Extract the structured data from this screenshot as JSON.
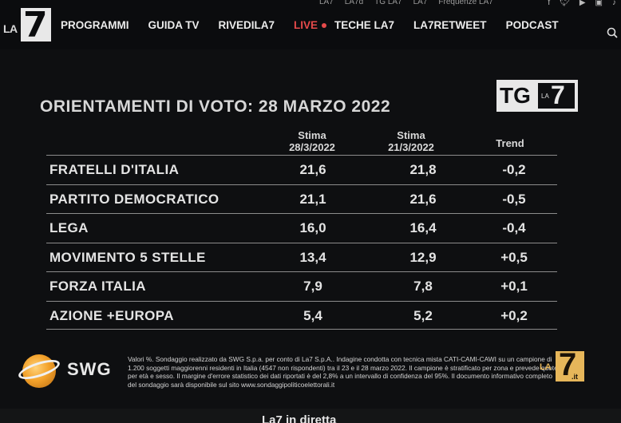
{
  "topbar": {
    "links": [
      "LA7",
      "LA7d",
      "TG LA7",
      "LA7"
    ],
    "frequenze": "Frequenze LA7",
    "social_icons": [
      "facebook-icon",
      "twitter-icon",
      "youtube-icon",
      "instagram-icon",
      "bell-icon"
    ]
  },
  "header": {
    "logo_la": "LA",
    "logo_seven": "7",
    "nav": [
      "PROGRAMMI",
      "GUIDA TV",
      "RIVEDILA7"
    ],
    "live": "LIVE",
    "nav2": [
      "TECHE LA7",
      "LA7RETWEET",
      "PODCAST"
    ],
    "accent_color": "#e64a4a"
  },
  "graphic": {
    "title": "ORIENTAMENTI DI VOTO: 28 MARZO 2022",
    "tg_logo": {
      "tg": "TG",
      "la": "LA",
      "seven": "7"
    },
    "columns": {
      "c1_top": "Stima",
      "c1_date": "28/3/2022",
      "c2_top": "Stima",
      "c2_date": "21/3/2022",
      "c3": "Trend"
    },
    "rows": [
      {
        "party": "FRATELLI D'ITALIA",
        "stima1": "21,6",
        "stima2": "21,8",
        "trend": "-0,2"
      },
      {
        "party": "PARTITO DEMOCRATICO",
        "stima1": "21,1",
        "stima2": "21,6",
        "trend": "-0,5"
      },
      {
        "party": "LEGA",
        "stima1": "16,0",
        "stima2": "16,4",
        "trend": "-0,4"
      },
      {
        "party": "MOVIMENTO 5 STELLE",
        "stima1": "13,4",
        "stima2": "12,9",
        "trend": "+0,5"
      },
      {
        "party": "FORZA ITALIA",
        "stima1": "7,9",
        "stima2": "7,8",
        "trend": "+0,1"
      },
      {
        "party": "AZIONE +EUROPA",
        "stima1": "5,4",
        "stima2": "5,2",
        "trend": "+0,2"
      }
    ],
    "note": "Valori %. Sondaggio realizzato da SWG S.p.a. per conto di La7 S.p.A.. Indagine condotta con tecnica mista CATI-CAMI-CAWI su un campione di 1.200 soggetti maggiorenni residenti in Italia (4547 non rispondenti) tra il 23 e il 28 marzo 2022. Il campione è stratificato per zona e prevede quote per età e sesso. Il margine d'errore statistico dei dati riportati è del 2,8% a un intervallo di confidenza del 95%. Il documento informativo completo del sondaggio sarà disponibile sul sito www.sondaggipoliticoelettorali.it",
    "swg_label": "SWG",
    "la7_small": {
      "la": "LA",
      "seven": "7",
      "it": ".it"
    }
  },
  "bottom": {
    "label": "La7 in diretta"
  }
}
